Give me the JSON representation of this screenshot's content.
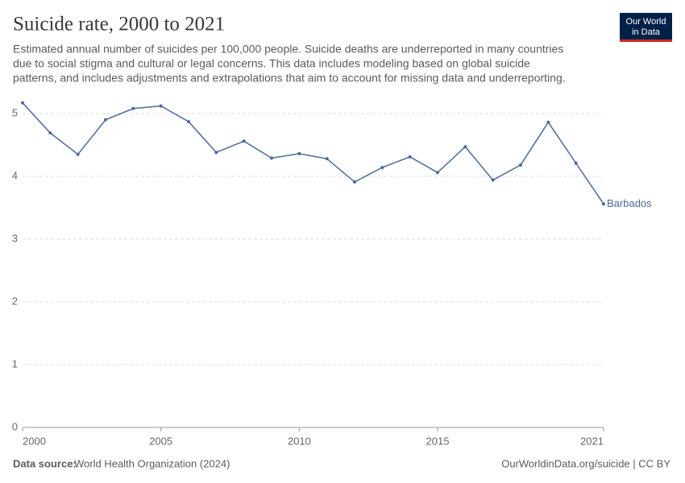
{
  "chart_data": {
    "type": "line",
    "title": "Suicide rate, 2000 to 2021",
    "subtitle": [
      "Estimated annual number of suicides per 100,000 people. Suicide deaths are underreported in many countries",
      "due to social stigma and cultural or legal concerns. This data includes modeling based on global suicide",
      "patterns, and includes adjustments and extrapolations that aim to account for missing data and underreporting."
    ],
    "x": [
      2000,
      2001,
      2002,
      2003,
      2004,
      2005,
      2006,
      2007,
      2008,
      2009,
      2010,
      2011,
      2012,
      2013,
      2014,
      2015,
      2016,
      2017,
      2018,
      2019,
      2020,
      2021
    ],
    "series": [
      {
        "name": "Barbados",
        "color": "#4c6a9c",
        "values": [
          5.17,
          4.69,
          4.35,
          4.9,
          5.08,
          5.12,
          4.87,
          4.38,
          4.56,
          4.29,
          4.36,
          4.28,
          3.91,
          4.14,
          4.31,
          4.06,
          4.47,
          3.94,
          4.18,
          4.86,
          4.21,
          3.56
        ]
      }
    ],
    "xlim": [
      2000,
      2021
    ],
    "xticks": [
      2000,
      2005,
      2010,
      2015,
      2021
    ],
    "ylim": [
      0,
      5.2
    ],
    "yticks": [
      0,
      1,
      2,
      3,
      4,
      5
    ],
    "grid": true,
    "source_label": "Data source:",
    "source": "World Health Organization (2024)",
    "credit": "OurWorldinData.org/suicide | CC BY",
    "logo": [
      "Our World",
      "in Data"
    ]
  }
}
